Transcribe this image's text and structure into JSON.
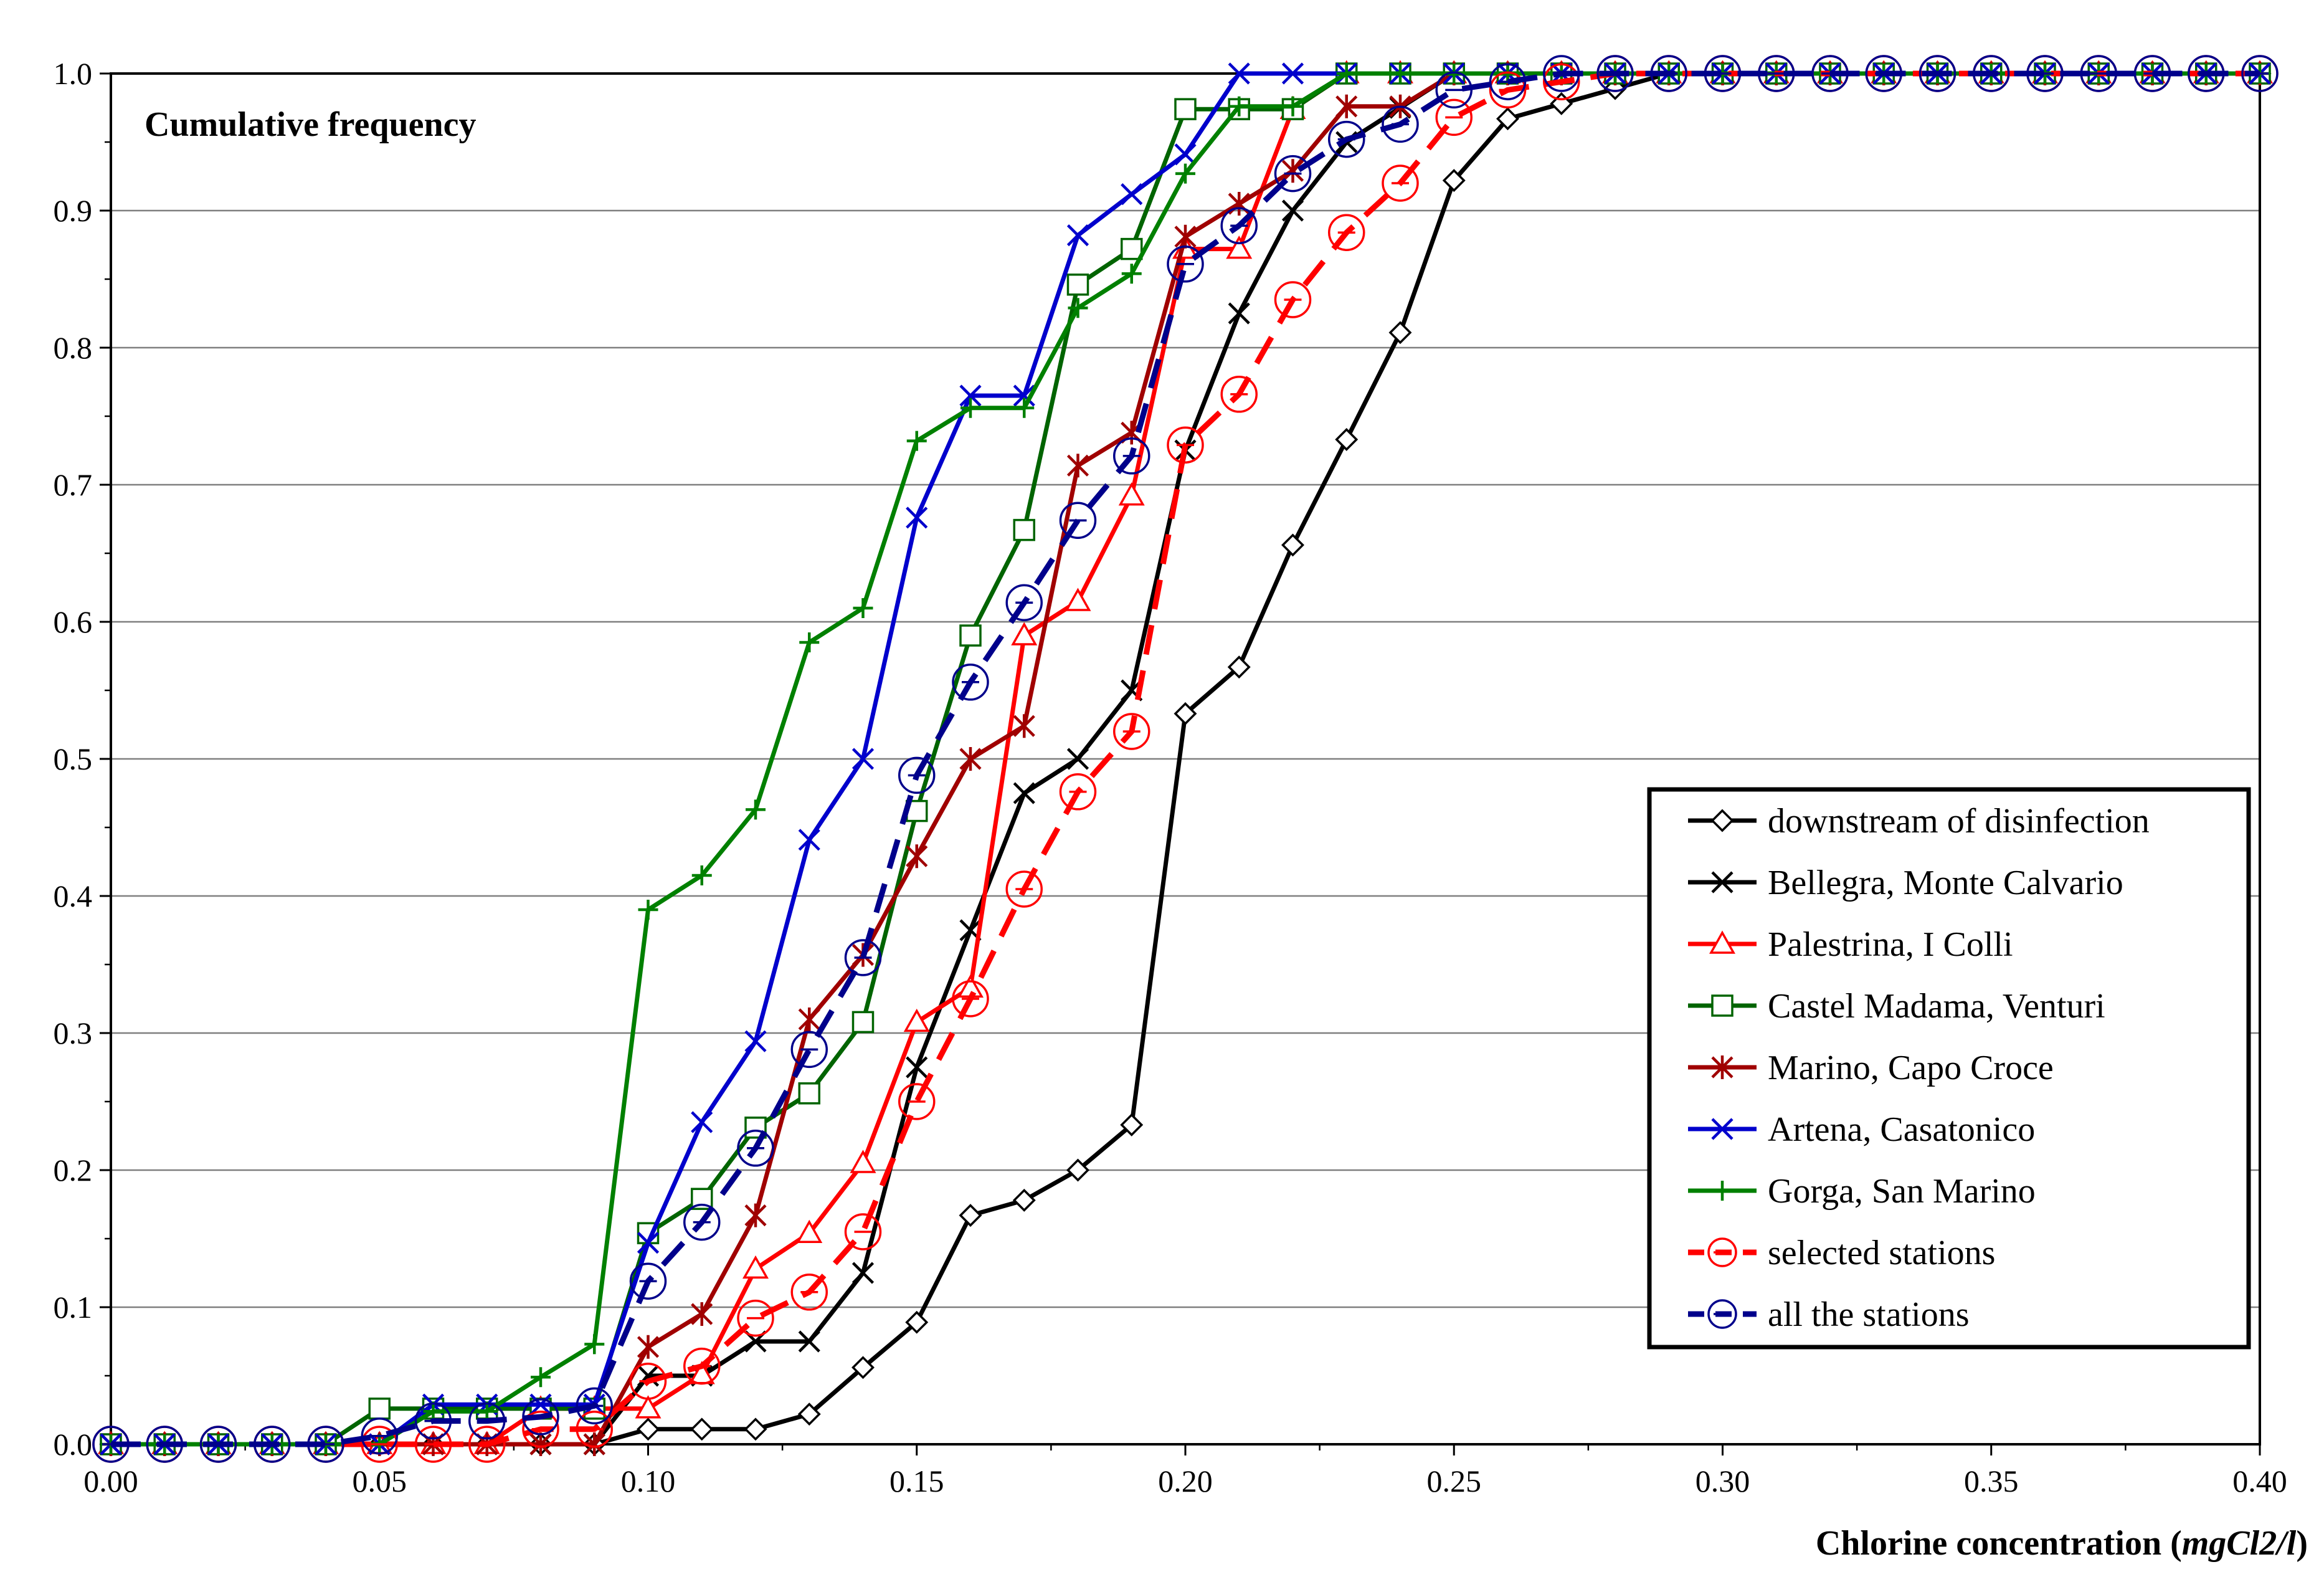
{
  "chart_data": {
    "type": "line",
    "title": "Cumulative frequency",
    "xlabel": "Chlorine concentration (",
    "xlabel_italic": "mgCl2/l",
    "xlabel_close": ")",
    "ylabel": "",
    "xlim": [
      0,
      0.4
    ],
    "ylim": [
      0,
      1
    ],
    "grid": "horizontal",
    "legend_position": "bottom-right",
    "x_ticks": [
      "0.00",
      "0.05",
      "0.10",
      "0.15",
      "0.20",
      "0.25",
      "0.30",
      "0.35",
      "0.40"
    ],
    "y_ticks": [
      "0.0",
      "0.1",
      "0.2",
      "0.3",
      "0.4",
      "0.5",
      "0.6",
      "0.7",
      "0.8",
      "0.9",
      "1.0"
    ],
    "series": [
      {
        "name": "downstream of disinfection",
        "color": "#000000",
        "marker": "diamond",
        "dash": false,
        "x": [
          0,
          0.01,
          0.02,
          0.03,
          0.04,
          0.05,
          0.06,
          0.07,
          0.08,
          0.09,
          0.1,
          0.11,
          0.12,
          0.13,
          0.14,
          0.15,
          0.16,
          0.17,
          0.18,
          0.19,
          0.2,
          0.21,
          0.22,
          0.23,
          0.24,
          0.25,
          0.26,
          0.27,
          0.28,
          0.29,
          0.3,
          0.31,
          0.32,
          0.33,
          0.34,
          0.35,
          0.36,
          0.37,
          0.38,
          0.39,
          0.4
        ],
        "y": [
          0,
          0,
          0,
          0,
          0,
          0,
          0,
          0,
          0,
          0,
          0.011,
          0.011,
          0.011,
          0.022,
          0.056,
          0.089,
          0.167,
          0.178,
          0.2,
          0.233,
          0.533,
          0.567,
          0.656,
          0.733,
          0.811,
          0.922,
          0.967,
          0.978,
          0.989,
          1,
          1,
          1,
          1,
          1,
          1,
          1,
          1,
          1,
          1,
          1,
          1
        ]
      },
      {
        "name": "Bellegra, Monte Calvario",
        "color": "#000000",
        "marker": "x",
        "dash": false,
        "x": [
          0,
          0.01,
          0.02,
          0.03,
          0.04,
          0.05,
          0.06,
          0.07,
          0.08,
          0.09,
          0.1,
          0.11,
          0.12,
          0.13,
          0.14,
          0.15,
          0.16,
          0.17,
          0.18,
          0.19,
          0.2,
          0.21,
          0.22,
          0.23,
          0.24,
          0.25,
          0.26,
          0.27,
          0.28,
          0.29,
          0.3,
          0.31,
          0.32,
          0.33,
          0.34,
          0.35,
          0.36,
          0.37,
          0.38,
          0.39,
          0.4
        ],
        "y": [
          0,
          0,
          0,
          0,
          0,
          0,
          0,
          0,
          0,
          0,
          0.05,
          0.05,
          0.075,
          0.075,
          0.125,
          0.275,
          0.375,
          0.475,
          0.5,
          0.55,
          0.725,
          0.825,
          0.9,
          0.95,
          0.975,
          1,
          1,
          1,
          1,
          1,
          1,
          1,
          1,
          1,
          1,
          1,
          1,
          1,
          1,
          1,
          1
        ]
      },
      {
        "name": "Palestrina, I Colli",
        "color": "#ff0000",
        "marker": "triangle",
        "dash": false,
        "x": [
          0,
          0.01,
          0.02,
          0.03,
          0.04,
          0.05,
          0.06,
          0.07,
          0.08,
          0.09,
          0.1,
          0.11,
          0.12,
          0.13,
          0.14,
          0.15,
          0.16,
          0.17,
          0.18,
          0.19,
          0.2,
          0.21,
          0.22,
          0.23,
          0.24,
          0.25,
          0.26,
          0.27,
          0.28,
          0.29,
          0.3,
          0.31,
          0.32,
          0.33,
          0.34,
          0.35,
          0.36,
          0.37,
          0.38,
          0.39,
          0.4
        ],
        "y": [
          0,
          0,
          0,
          0,
          0,
          0,
          0,
          0,
          0.026,
          0.026,
          0.026,
          0.051,
          0.128,
          0.154,
          0.205,
          0.308,
          0.333,
          0.59,
          0.615,
          0.692,
          0.872,
          0.872,
          0.974,
          1,
          1,
          1,
          1,
          1,
          1,
          1,
          1,
          1,
          1,
          1,
          1,
          1,
          1,
          1,
          1,
          1,
          1
        ]
      },
      {
        "name": "Castel Madama, Venturi",
        "color": "#006400",
        "marker": "square",
        "dash": false,
        "x": [
          0,
          0.01,
          0.02,
          0.03,
          0.04,
          0.05,
          0.06,
          0.07,
          0.08,
          0.09,
          0.1,
          0.11,
          0.12,
          0.13,
          0.14,
          0.15,
          0.16,
          0.17,
          0.18,
          0.19,
          0.2,
          0.21,
          0.22,
          0.23,
          0.24,
          0.25,
          0.26,
          0.27,
          0.28,
          0.29,
          0.3,
          0.31,
          0.32,
          0.33,
          0.34,
          0.35,
          0.36,
          0.37,
          0.38,
          0.39,
          0.4
        ],
        "y": [
          0,
          0,
          0,
          0,
          0,
          0.026,
          0.026,
          0.026,
          0.026,
          0.026,
          0.154,
          0.179,
          0.231,
          0.256,
          0.308,
          0.462,
          0.59,
          0.667,
          0.846,
          0.872,
          0.974,
          0.974,
          0.974,
          1,
          1,
          1,
          1,
          1,
          1,
          1,
          1,
          1,
          1,
          1,
          1,
          1,
          1,
          1,
          1,
          1,
          1
        ]
      },
      {
        "name": "Marino, Capo Croce",
        "color": "#a00000",
        "marker": "asterisk",
        "dash": false,
        "x": [
          0,
          0.01,
          0.02,
          0.03,
          0.04,
          0.05,
          0.06,
          0.07,
          0.08,
          0.09,
          0.1,
          0.11,
          0.12,
          0.13,
          0.14,
          0.15,
          0.16,
          0.17,
          0.18,
          0.19,
          0.2,
          0.21,
          0.22,
          0.23,
          0.24,
          0.25,
          0.26,
          0.27,
          0.28,
          0.29,
          0.3,
          0.31,
          0.32,
          0.33,
          0.34,
          0.35,
          0.36,
          0.37,
          0.38,
          0.39,
          0.4
        ],
        "y": [
          0,
          0,
          0,
          0,
          0,
          0,
          0,
          0,
          0,
          0,
          0.071,
          0.095,
          0.167,
          0.31,
          0.357,
          0.429,
          0.5,
          0.524,
          0.714,
          0.738,
          0.881,
          0.905,
          0.929,
          0.976,
          0.976,
          1,
          1,
          1,
          1,
          1,
          1,
          1,
          1,
          1,
          1,
          1,
          1,
          1,
          1,
          1,
          1
        ]
      },
      {
        "name": "Artena, Casatonico",
        "color": "#0000cc",
        "marker": "x",
        "dash": false,
        "x": [
          0,
          0.01,
          0.02,
          0.03,
          0.04,
          0.05,
          0.06,
          0.07,
          0.08,
          0.09,
          0.1,
          0.11,
          0.12,
          0.13,
          0.14,
          0.15,
          0.16,
          0.17,
          0.18,
          0.19,
          0.2,
          0.21,
          0.22,
          0.23,
          0.24,
          0.25,
          0.26,
          0.27,
          0.28,
          0.29,
          0.3,
          0.31,
          0.32,
          0.33,
          0.34,
          0.35,
          0.36,
          0.37,
          0.38,
          0.39,
          0.4
        ],
        "y": [
          0,
          0,
          0,
          0,
          0,
          0,
          0.029,
          0.029,
          0.029,
          0.029,
          0.147,
          0.235,
          0.294,
          0.441,
          0.5,
          0.676,
          0.765,
          0.765,
          0.882,
          0.912,
          0.941,
          1,
          1,
          1,
          1,
          1,
          1,
          1,
          1,
          1,
          1,
          1,
          1,
          1,
          1,
          1,
          1,
          1,
          1,
          1,
          1
        ]
      },
      {
        "name": "Gorga, San Marino",
        "color": "#008000",
        "marker": "plus",
        "dash": false,
        "x": [
          0,
          0.01,
          0.02,
          0.03,
          0.04,
          0.05,
          0.06,
          0.07,
          0.08,
          0.09,
          0.1,
          0.11,
          0.12,
          0.13,
          0.14,
          0.15,
          0.16,
          0.17,
          0.18,
          0.19,
          0.2,
          0.21,
          0.22,
          0.23,
          0.24,
          0.25,
          0.26,
          0.27,
          0.28,
          0.29,
          0.3,
          0.31,
          0.32,
          0.33,
          0.34,
          0.35,
          0.36,
          0.37,
          0.38,
          0.39,
          0.4
        ],
        "y": [
          0,
          0,
          0,
          0,
          0,
          0,
          0.024,
          0.024,
          0.049,
          0.073,
          0.39,
          0.415,
          0.463,
          0.585,
          0.61,
          0.732,
          0.756,
          0.756,
          0.829,
          0.854,
          0.927,
          0.976,
          0.976,
          1,
          1,
          1,
          1,
          1,
          1,
          1,
          1,
          1,
          1,
          1,
          1,
          1,
          1,
          1,
          1,
          1,
          1
        ]
      },
      {
        "name": "selected stations",
        "color": "#ff0000",
        "marker": "circle",
        "dash": true,
        "x": [
          0,
          0.01,
          0.02,
          0.03,
          0.04,
          0.05,
          0.06,
          0.07,
          0.08,
          0.09,
          0.1,
          0.11,
          0.12,
          0.13,
          0.14,
          0.15,
          0.16,
          0.17,
          0.18,
          0.19,
          0.2,
          0.21,
          0.22,
          0.23,
          0.24,
          0.25,
          0.26,
          0.27,
          0.28,
          0.29,
          0.3,
          0.31,
          0.32,
          0.33,
          0.34,
          0.35,
          0.36,
          0.37,
          0.38,
          0.39,
          0.4
        ],
        "y": [
          0,
          0,
          0,
          0,
          0,
          0,
          0,
          0,
          0.011,
          0.011,
          0.046,
          0.057,
          0.092,
          0.111,
          0.155,
          0.25,
          0.325,
          0.405,
          0.476,
          0.52,
          0.729,
          0.766,
          0.835,
          0.884,
          0.92,
          0.968,
          0.988,
          0.994,
          1,
          1,
          1,
          1,
          1,
          1,
          1,
          1,
          1,
          1,
          1,
          1,
          1
        ]
      },
      {
        "name": "all the stations",
        "color": "#00008b",
        "marker": "circle",
        "dash": true,
        "x": [
          0,
          0.01,
          0.02,
          0.03,
          0.04,
          0.05,
          0.06,
          0.07,
          0.08,
          0.09,
          0.1,
          0.11,
          0.12,
          0.13,
          0.14,
          0.15,
          0.16,
          0.17,
          0.18,
          0.19,
          0.2,
          0.21,
          0.22,
          0.23,
          0.24,
          0.25,
          0.26,
          0.27,
          0.28,
          0.29,
          0.3,
          0.31,
          0.32,
          0.33,
          0.34,
          0.35,
          0.36,
          0.37,
          0.38,
          0.39,
          0.4
        ],
        "y": [
          0,
          0,
          0,
          0,
          0,
          0.006,
          0.017,
          0.017,
          0.02,
          0.028,
          0.119,
          0.162,
          0.216,
          0.288,
          0.355,
          0.488,
          0.556,
          0.614,
          0.674,
          0.721,
          0.861,
          0.889,
          0.927,
          0.952,
          0.963,
          0.988,
          0.994,
          1,
          1,
          1,
          1,
          1,
          1,
          1,
          1,
          1,
          1,
          1,
          1,
          1,
          1
        ]
      }
    ]
  }
}
